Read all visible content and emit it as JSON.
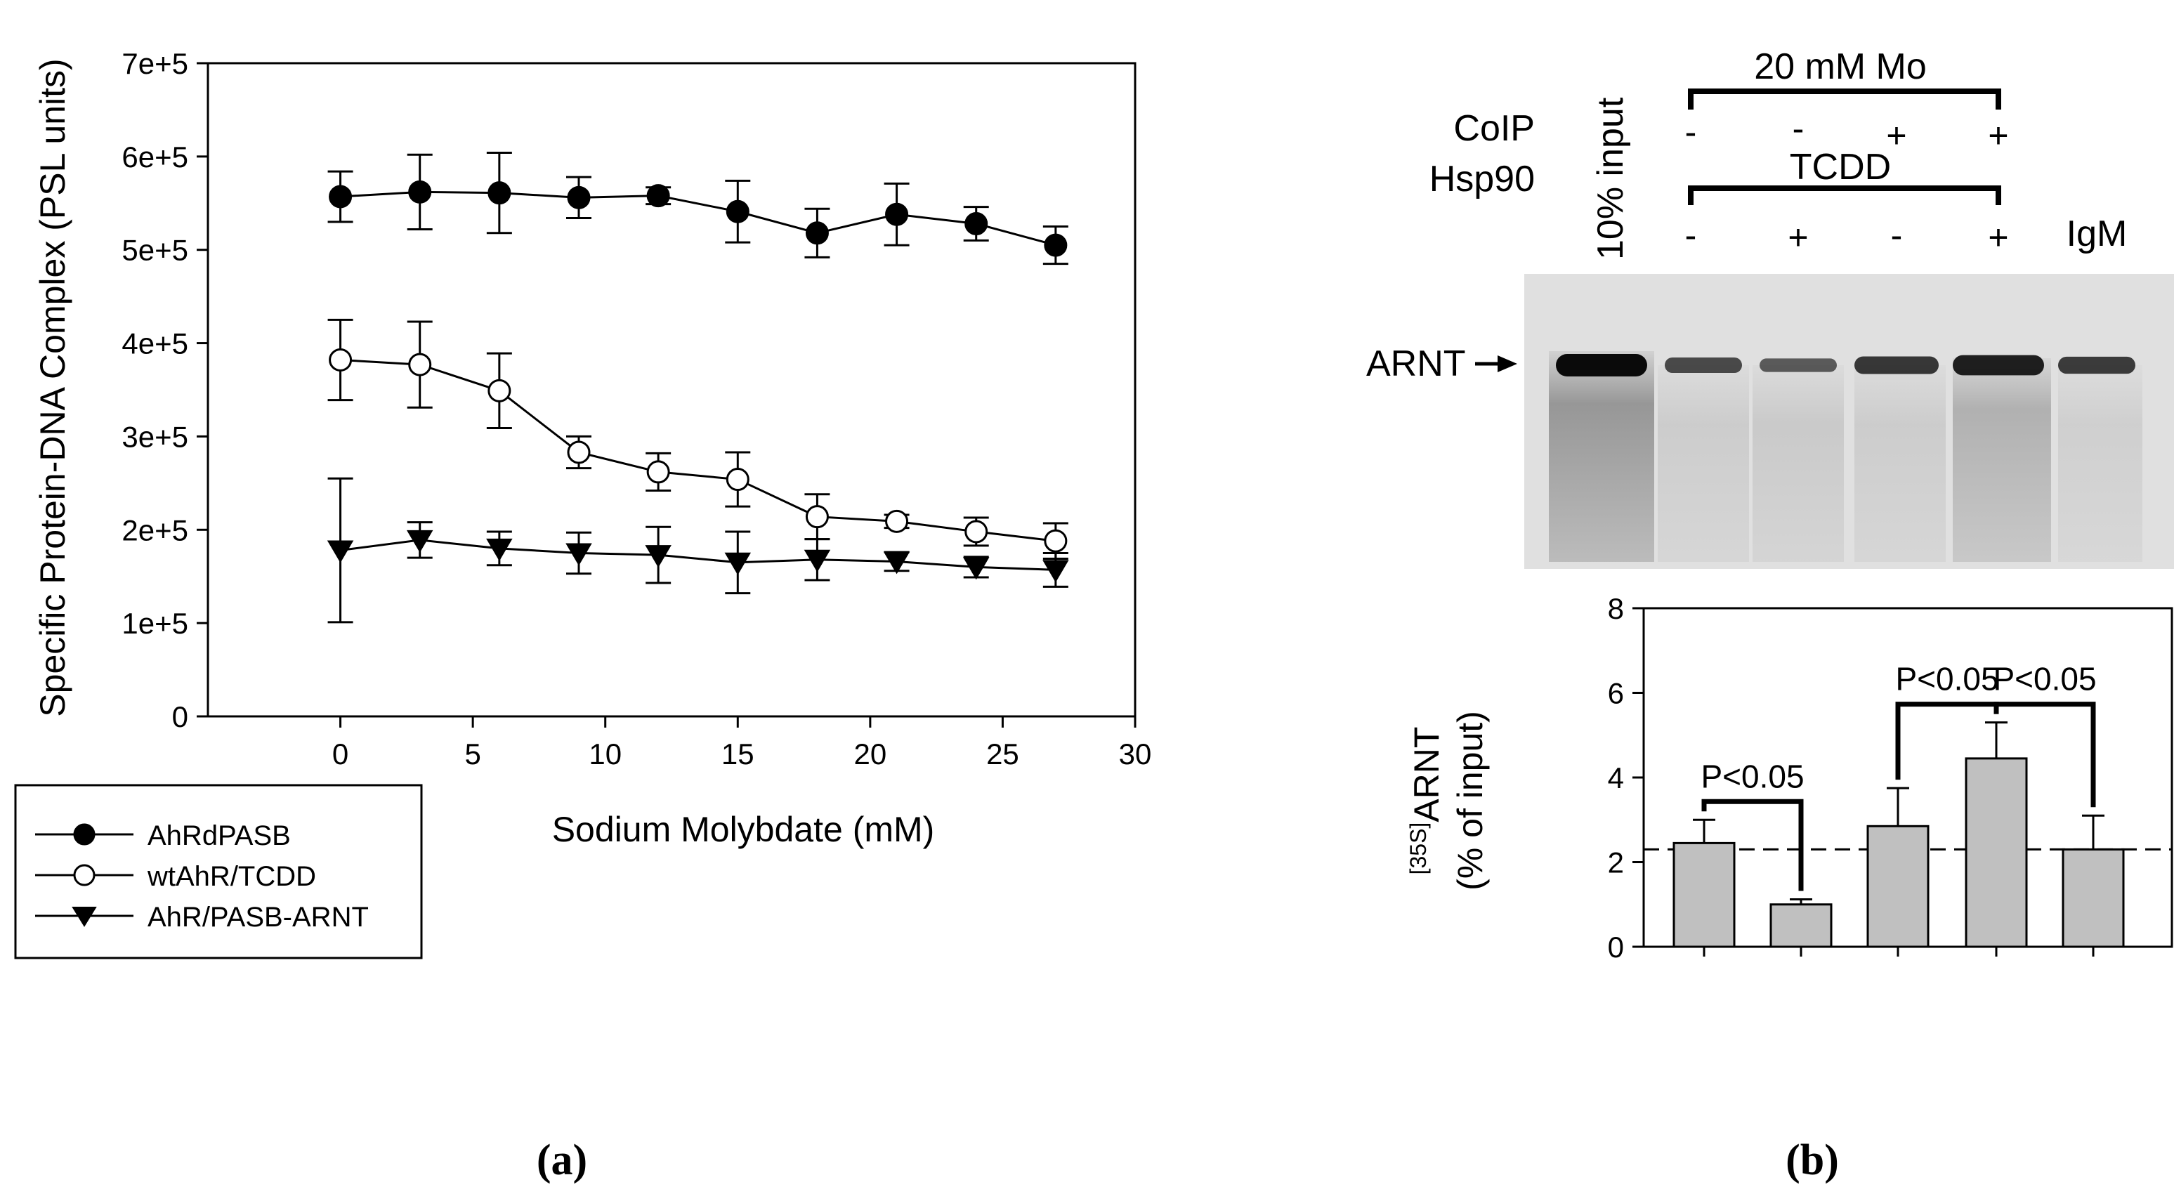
{
  "chart_data": [
    {
      "type": "line",
      "panel": "(a)",
      "xlabel": "Sodium Molybdate (mM)",
      "ylabel": "Specific Protein-DNA Complex (PSL units)",
      "xlim": [
        -5,
        30
      ],
      "ylim": [
        0,
        700000
      ],
      "x_ticks": [
        "0",
        "5",
        "10",
        "15",
        "20",
        "25",
        "30"
      ],
      "x_tick_values": [
        0,
        5,
        10,
        15,
        20,
        25,
        30
      ],
      "y_ticks": [
        "0",
        "1e+5",
        "2e+5",
        "3e+5",
        "4e+5",
        "5e+5",
        "6e+5",
        "7e+5"
      ],
      "y_tick_values": [
        0,
        100000,
        200000,
        300000,
        400000,
        500000,
        600000,
        700000
      ],
      "x": [
        0,
        3,
        6,
        9,
        12,
        15,
        18,
        21,
        24,
        27
      ],
      "legend_position": "bottom-left outside",
      "series": [
        {
          "name": "AhRdPASB",
          "marker": "filled-circle",
          "values": [
            557000,
            562000,
            561000,
            556000,
            558000,
            541000,
            518000,
            538000,
            528000,
            505000
          ],
          "errors": [
            27000,
            40000,
            43000,
            22000,
            9000,
            33000,
            26000,
            33000,
            18000,
            20000
          ]
        },
        {
          "name": "wtAhR/TCDD",
          "marker": "open-circle",
          "values": [
            382000,
            377000,
            349000,
            283000,
            262000,
            254000,
            214000,
            209000,
            198000,
            188000
          ],
          "errors": [
            43000,
            46000,
            40000,
            17000,
            20000,
            29000,
            24000,
            7000,
            15000,
            19000
          ]
        },
        {
          "name": "AhR/PASB-ARNT",
          "marker": "filled-triangle-down",
          "values": [
            178000,
            189000,
            180000,
            175000,
            173000,
            165000,
            168000,
            166000,
            160000,
            157000
          ],
          "errors": [
            77000,
            19000,
            18000,
            22000,
            30000,
            33000,
            22000,
            10000,
            11000,
            18000
          ]
        }
      ]
    },
    {
      "type": "bar",
      "panel": "(b)",
      "xlabel": "",
      "ylabel_line1": "[35S]ARNT",
      "ylabel_line2": "(% of input)",
      "ylim": [
        0,
        8
      ],
      "y_ticks": [
        "0",
        "2",
        "4",
        "6",
        "8"
      ],
      "y_tick_values": [
        0,
        2,
        4,
        6,
        8
      ],
      "categories": [
        "Mo- TCDD-",
        "Mo- TCDD+",
        "Mo+ TCDD-",
        "Mo+ TCDD+",
        "IgM"
      ],
      "values": [
        2.45,
        1.0,
        2.85,
        4.45,
        2.3
      ],
      "errors": [
        0.55,
        0.12,
        0.9,
        0.85,
        0.8
      ],
      "reference_line": 2.3,
      "comparisons": [
        {
          "pair": [
            0,
            1
          ],
          "label": "P<0.05"
        },
        {
          "pair": [
            2,
            3
          ],
          "label": "P<0.05"
        },
        {
          "pair": [
            3,
            4
          ],
          "label": "P<0.05"
        }
      ]
    }
  ],
  "blot": {
    "mo_label": "20 mM Mo",
    "coip_label": "CoIP",
    "hsp_label": "Hsp90",
    "tcdd_label": "TCDD",
    "input_label": "10% input",
    "igm_label": "IgM",
    "arnt_label": "ARNT",
    "mo_signs": [
      "-",
      "-",
      "+",
      "+"
    ],
    "tcdd_signs": [
      "-",
      "+",
      "-",
      "+"
    ],
    "band_intensity": [
      1.0,
      0.55,
      0.42,
      0.68,
      0.85,
      0.65
    ]
  },
  "panel_labels": {
    "a": "(a)",
    "b": "(b)"
  },
  "colors": {
    "bar_fill": "#c0c0c0",
    "line": "#000000",
    "blot_bg": "#e0e0e0",
    "band": "#0a0a0a"
  }
}
